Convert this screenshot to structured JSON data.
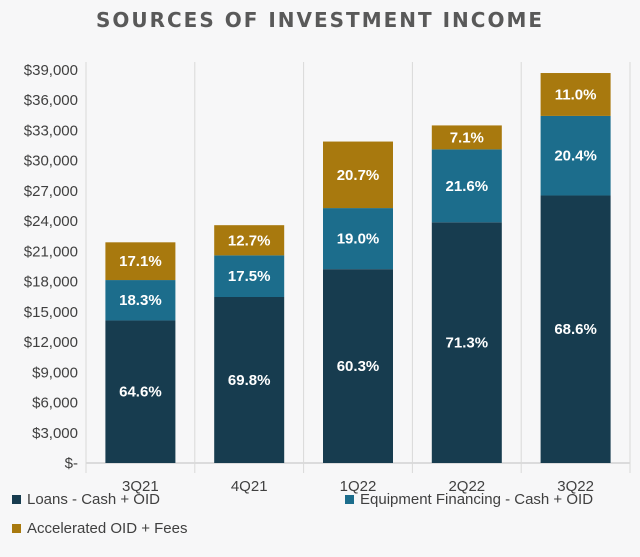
{
  "chart_data": {
    "type": "bar",
    "stacked": true,
    "title": "SOURCES OF INVESTMENT INCOME",
    "categories": [
      "3Q21",
      "4Q21",
      "1Q22",
      "2Q22",
      "3Q22"
    ],
    "totals": [
      21900,
      23600,
      31900,
      33500,
      38700
    ],
    "series": [
      {
        "name": "Loans - Cash + OID",
        "color": "#173c4f",
        "percent_labels": [
          "64.6%",
          "69.8%",
          "60.3%",
          "71.3%",
          "68.6%"
        ],
        "shares": [
          0.646,
          0.698,
          0.603,
          0.713,
          0.686
        ]
      },
      {
        "name": "Equipment Financing - Cash + OID",
        "color": "#1c6d8c",
        "percent_labels": [
          "18.3%",
          "17.5%",
          "19.0%",
          "21.6%",
          "20.4%"
        ],
        "shares": [
          0.183,
          0.175,
          0.19,
          0.216,
          0.204
        ]
      },
      {
        "name": "Accelerated OID + Fees",
        "color": "#a8790e",
        "percent_labels": [
          "17.1%",
          "12.7%",
          "20.7%",
          "7.1%",
          "11.0%"
        ],
        "shares": [
          0.171,
          0.127,
          0.207,
          0.071,
          0.11
        ]
      }
    ],
    "ylim": [
      0,
      39000
    ],
    "y_ticks": [
      0,
      3000,
      6000,
      9000,
      12000,
      15000,
      18000,
      21000,
      24000,
      27000,
      30000,
      33000,
      36000,
      39000
    ],
    "y_tick_labels": [
      "$-",
      "$3,000",
      "$6,000",
      "$9,000",
      "$12,000",
      "$15,000",
      "$18,000",
      "$21,000",
      "$24,000",
      "$27,000",
      "$30,000",
      "$33,000",
      "$36,000",
      "$39,000"
    ],
    "grid": "vertical separators",
    "legend_position": "bottom"
  },
  "colors": {
    "background": "#f7f7f8",
    "axis": "#bfbfbf",
    "text": "#404040",
    "title": "#595959"
  }
}
